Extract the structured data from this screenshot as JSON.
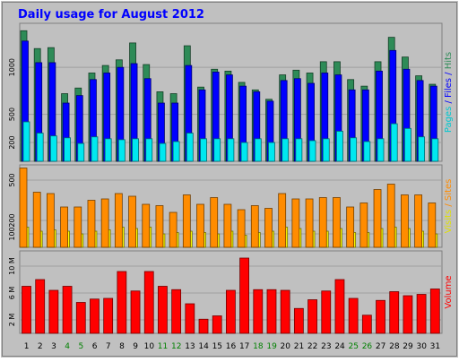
{
  "chart_data": {
    "type": "bar",
    "title": "Daily usage for August 2012",
    "categories": [
      "1",
      "2",
      "3",
      "4",
      "5",
      "6",
      "7",
      "8",
      "9",
      "10",
      "11",
      "12",
      "13",
      "14",
      "15",
      "16",
      "17",
      "18",
      "19",
      "20",
      "21",
      "22",
      "23",
      "24",
      "25",
      "26",
      "27",
      "28",
      "29",
      "30",
      "31"
    ],
    "weekend_days": [
      "4",
      "5",
      "11",
      "12",
      "18",
      "19",
      "25",
      "26"
    ],
    "panels": [
      {
        "name": "hits-files-pages",
        "scale": "linear",
        "ylim": [
          0,
          1450
        ],
        "yticks": [
          200,
          500,
          1000
        ],
        "series": [
          {
            "name": "Hits",
            "color": "#2e8b57",
            "values": [
              1390,
              1200,
              1210,
              720,
              780,
              940,
              1020,
              1080,
              1260,
              1030,
              740,
              720,
              1230,
              790,
              980,
              960,
              840,
              760,
              660,
              920,
              970,
              940,
              1060,
              1060,
              870,
              800,
              1060,
              1320,
              1110,
              910,
              820
            ]
          },
          {
            "name": "Files",
            "color": "#0000ff",
            "values": [
              1280,
              1050,
              1050,
              620,
              700,
              870,
              940,
              1000,
              1040,
              880,
              620,
              620,
              1020,
              760,
              950,
              920,
              800,
              740,
              640,
              860,
              880,
              830,
              940,
              920,
              760,
              760,
              960,
              1180,
              980,
              860,
              800
            ]
          },
          {
            "name": "Pages",
            "color": "#00e8f0",
            "values": [
              420,
              300,
              270,
              250,
              190,
              260,
              240,
              230,
              240,
              240,
              190,
              210,
              300,
              240,
              240,
              240,
              200,
              240,
              200,
              240,
              240,
              220,
              240,
              320,
              250,
              210,
              240,
              400,
              350,
              260,
              240
            ]
          }
        ],
        "legend": [
          {
            "text": "Pages",
            "color": "#00c8d0"
          },
          {
            "text": " / ",
            "color": "#0000ff"
          },
          {
            "text": "Files",
            "color": "#0000ff"
          },
          {
            "text": " / ",
            "color": "#0000ff"
          },
          {
            "text": "Hits",
            "color": "#2e8b57"
          }
        ]
      },
      {
        "name": "sites-visits",
        "scale": "linear",
        "ylim": [
          0,
          600
        ],
        "yticks": [
          100,
          200,
          500
        ],
        "series": [
          {
            "name": "Visits",
            "color": "#ffff00",
            "values": [
              150,
              120,
              130,
              120,
              100,
              120,
              130,
              150,
              140,
              150,
              100,
              110,
              120,
              110,
              100,
              120,
              90,
              110,
              120,
              150,
              140,
              120,
              120,
              140,
              110,
              110,
              140,
              150,
              140,
              120,
              100
            ]
          },
          {
            "name": "Sites",
            "color": "#ff8c00",
            "values": [
              590,
              410,
              400,
              300,
              300,
              350,
              360,
              400,
              380,
              320,
              310,
              260,
              390,
              320,
              370,
              320,
              280,
              310,
              290,
              400,
              360,
              360,
              370,
              370,
              300,
              330,
              430,
              470,
              390,
              390,
              330
            ]
          }
        ],
        "legend": [
          {
            "text": "Visits",
            "color": "#e0e000"
          },
          {
            "text": " / ",
            "color": "#ff8c00"
          },
          {
            "text": "Sites",
            "color": "#ff8c00"
          }
        ]
      },
      {
        "name": "volume",
        "scale": "linear",
        "ylim": [
          0,
          12
        ],
        "yticks": [
          2,
          6,
          10
        ],
        "ytick_labels": [
          "2 M",
          "6 M",
          "10 M"
        ],
        "series": [
          {
            "name": "Volume",
            "color": "#ff0000",
            "values": [
              7.0,
              8.0,
              6.4,
              7.0,
              4.6,
              5.1,
              5.2,
              9.2,
              6.3,
              9.2,
              7.0,
              6.5,
              4.4,
              2.1,
              2.6,
              6.4,
              11.2,
              6.5,
              6.5,
              6.4,
              3.7,
              5.0,
              6.3,
              8.0,
              5.2,
              2.7,
              4.9,
              6.2,
              5.6,
              5.8,
              6.6
            ]
          }
        ],
        "legend": [
          {
            "text": "Volume",
            "color": "#ff0000"
          }
        ]
      }
    ]
  }
}
